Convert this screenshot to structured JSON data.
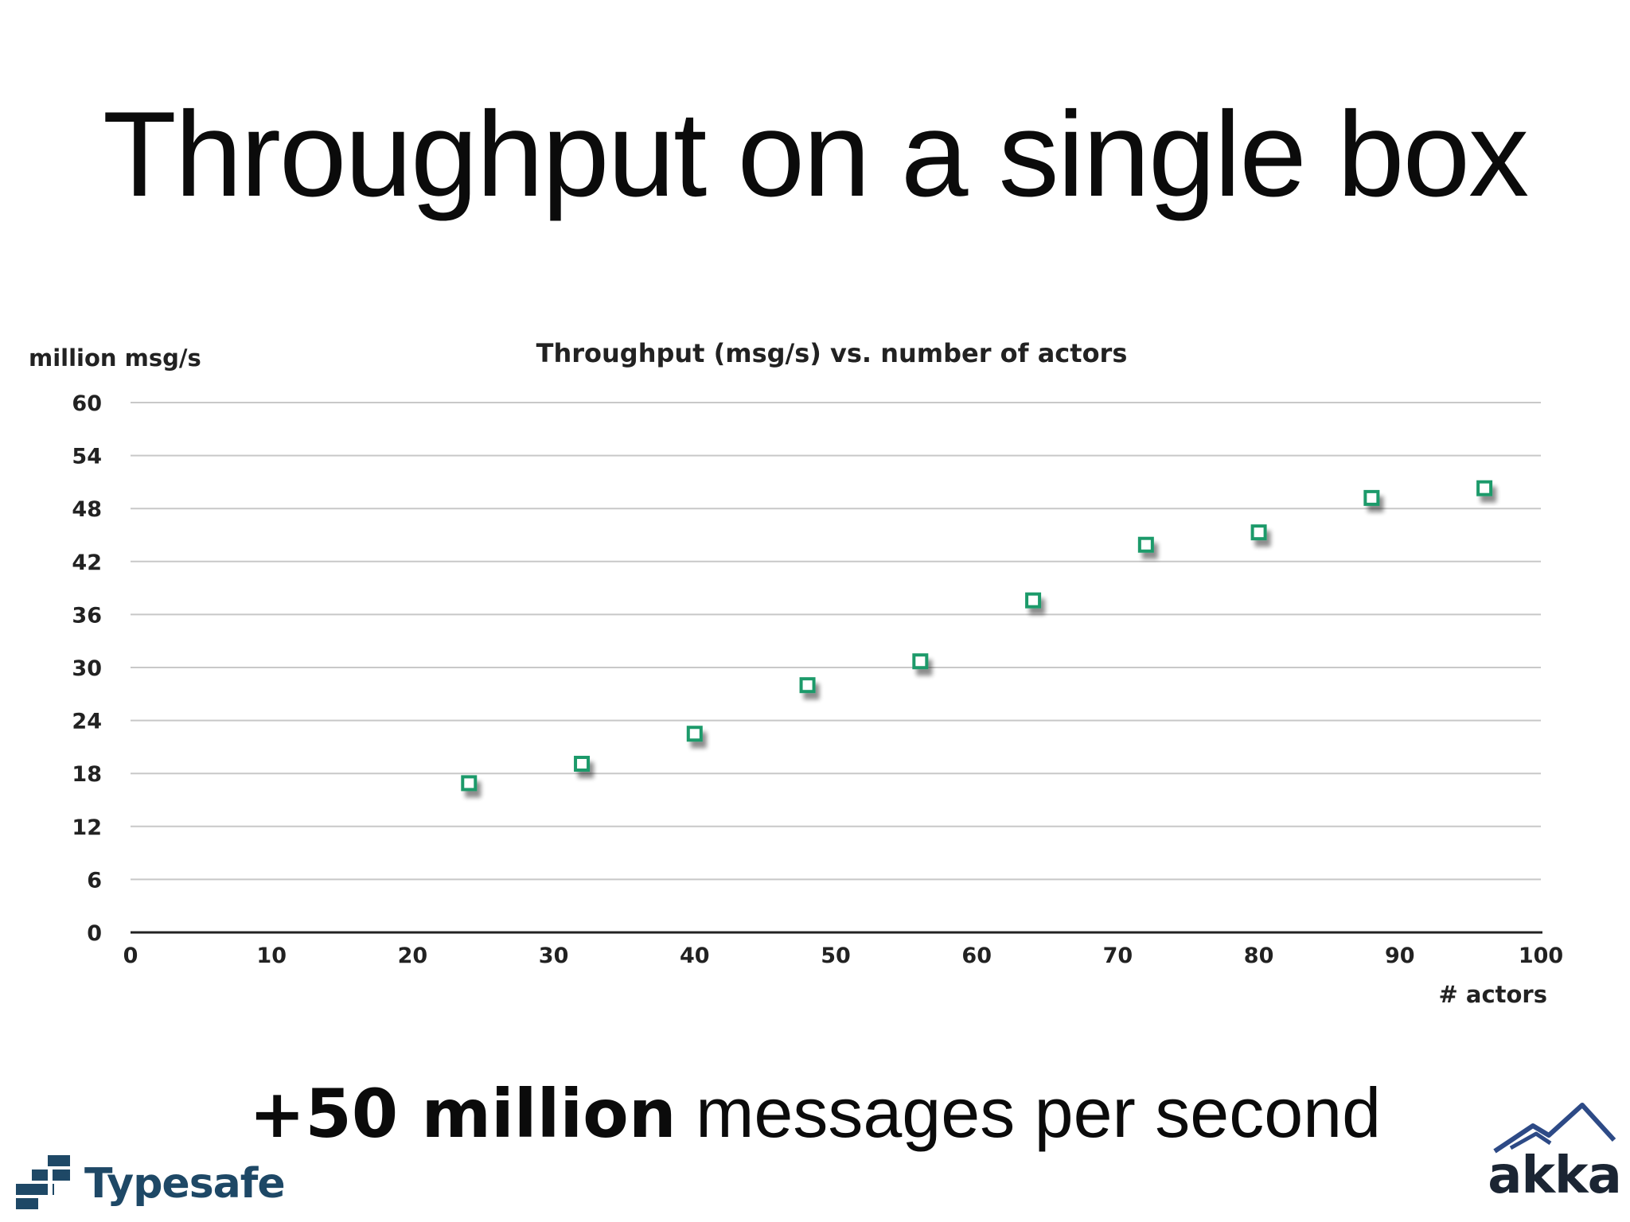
{
  "slide": {
    "title": "Throughput on a single box",
    "tagline_strong": "+50 million",
    "tagline_rest": " messages per second"
  },
  "logos": {
    "left_text": "Typesafe",
    "right_text": "akka"
  },
  "colors": {
    "marker": "#1f9a6a",
    "gridline": "#c8c8c8",
    "axis": "#222222",
    "typesafe": "#1e4866",
    "akka_mountain": "#2d4a86"
  },
  "chart_data": {
    "type": "scatter",
    "title": "Throughput (msg/s) vs. number of actors",
    "xlabel": "# actors",
    "ylabel": "million msg/s",
    "xlim": [
      0,
      100
    ],
    "ylim": [
      0,
      60
    ],
    "xticks": [
      0,
      10,
      20,
      30,
      40,
      50,
      60,
      70,
      80,
      90,
      100
    ],
    "yticks": [
      0,
      6,
      12,
      18,
      24,
      30,
      36,
      42,
      48,
      54,
      60
    ],
    "grid": true,
    "legend": "none",
    "marker": "hollow-square",
    "x": [
      24,
      32,
      40,
      48,
      56,
      64,
      72,
      80,
      88,
      96
    ],
    "y": [
      16.9,
      19.1,
      22.5,
      28.0,
      30.7,
      37.6,
      43.9,
      45.3,
      49.2,
      50.3
    ]
  }
}
